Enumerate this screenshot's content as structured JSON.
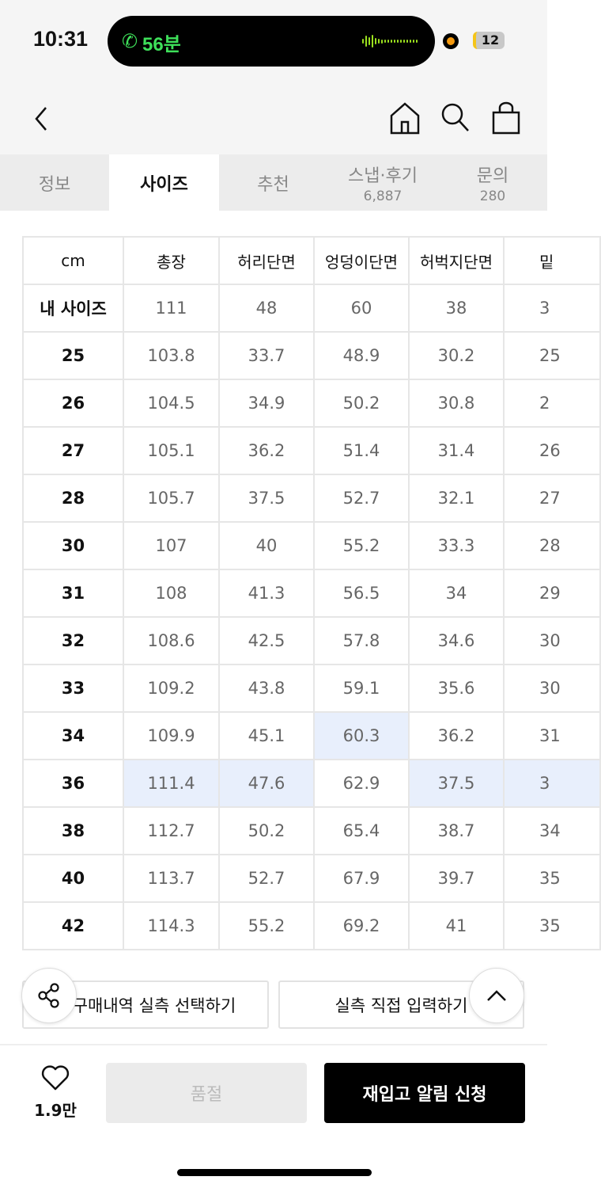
{
  "status_bar": {
    "time": "10:31",
    "call_duration": "56분",
    "battery": "12"
  },
  "tabs": [
    {
      "label": "정보",
      "sub": ""
    },
    {
      "label": "사이즈",
      "sub": "",
      "active": true
    },
    {
      "label": "추천",
      "sub": ""
    },
    {
      "label": "스냅·후기",
      "sub": "6,887"
    },
    {
      "label": "문의",
      "sub": "280"
    }
  ],
  "size_table": {
    "headers": [
      "cm",
      "총장",
      "허리단면",
      "엉덩이단면",
      "허벅지단면",
      "밑"
    ],
    "rows": [
      {
        "size": "내 사이즈",
        "values": [
          "111",
          "48",
          "60",
          "38",
          "3"
        ]
      },
      {
        "size": "25",
        "values": [
          "103.8",
          "33.7",
          "48.9",
          "30.2",
          "25"
        ]
      },
      {
        "size": "26",
        "values": [
          "104.5",
          "34.9",
          "50.2",
          "30.8",
          "2"
        ]
      },
      {
        "size": "27",
        "values": [
          "105.1",
          "36.2",
          "51.4",
          "31.4",
          "26"
        ]
      },
      {
        "size": "28",
        "values": [
          "105.7",
          "37.5",
          "52.7",
          "32.1",
          "27"
        ]
      },
      {
        "size": "30",
        "values": [
          "107",
          "40",
          "55.2",
          "33.3",
          "28"
        ]
      },
      {
        "size": "31",
        "values": [
          "108",
          "41.3",
          "56.5",
          "34",
          "29"
        ]
      },
      {
        "size": "32",
        "values": [
          "108.6",
          "42.5",
          "57.8",
          "34.6",
          "30"
        ]
      },
      {
        "size": "33",
        "values": [
          "109.2",
          "43.8",
          "59.1",
          "35.6",
          "30"
        ]
      },
      {
        "size": "34",
        "values": [
          "109.9",
          "45.1",
          "60.3",
          "36.2",
          "31"
        ],
        "highlight": [
          2
        ]
      },
      {
        "size": "36",
        "values": [
          "111.4",
          "47.6",
          "62.9",
          "37.5",
          "3"
        ],
        "highlight": [
          0,
          1,
          3,
          4
        ]
      },
      {
        "size": "38",
        "values": [
          "112.7",
          "50.2",
          "65.4",
          "38.7",
          "34"
        ]
      },
      {
        "size": "40",
        "values": [
          "113.7",
          "52.7",
          "67.9",
          "39.7",
          "35"
        ]
      },
      {
        "size": "42",
        "values": [
          "114.3",
          "55.2",
          "69.2",
          "41",
          "35"
        ]
      }
    ],
    "highlight_color": "#e8effc"
  },
  "actions": {
    "purchase_history": "구매내역 실측 선택하기",
    "manual_input": "실측 직접 입력하기"
  },
  "bottom_bar": {
    "likes": "1.9만",
    "soldout": "품절",
    "restock": "재입고 알림 신청"
  }
}
